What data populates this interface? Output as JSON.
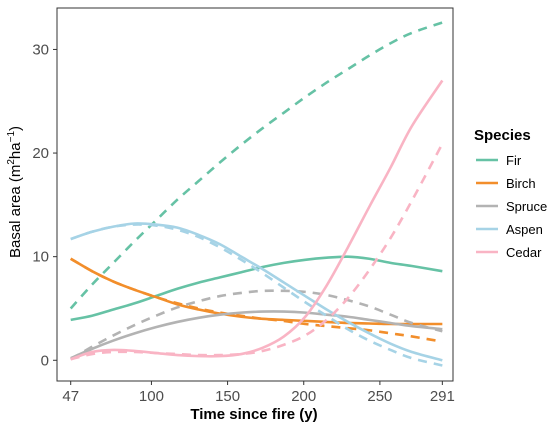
{
  "chart_data": {
    "type": "line",
    "xlabel": "Time since fire (y)",
    "ylabel": "Basal area (m²ha⁻¹)",
    "ylabel_main": "Basal area (m",
    "ylabel_sup1": "2",
    "ylabel_mid": "ha",
    "ylabel_sup2": "−1",
    "ylabel_end": ")",
    "xlim": [
      38,
      298
    ],
    "ylim": [
      -2,
      34
    ],
    "x_ticks": [
      47,
      100,
      150,
      200,
      250,
      291
    ],
    "x_tick_labels": [
      "47",
      "100",
      "150",
      "200",
      "250",
      "291"
    ],
    "y_ticks": [
      0,
      10,
      20,
      30
    ],
    "y_tick_labels": [
      "0",
      "10",
      "20",
      "30"
    ],
    "grid": false,
    "legend": {
      "title": "Species",
      "placement": "right"
    },
    "x": [
      47,
      61,
      75,
      89,
      103,
      117,
      131,
      145,
      159,
      173,
      187,
      201,
      215,
      229,
      243,
      257,
      271,
      291
    ],
    "series": [
      {
        "name": "Fir",
        "style": "solid",
        "color": "#66c2a5",
        "values": [
          3.9,
          4.3,
          4.9,
          5.5,
          6.2,
          6.9,
          7.5,
          8.0,
          8.5,
          9.0,
          9.4,
          9.7,
          9.9,
          10.0,
          9.8,
          9.4,
          9.1,
          8.6
        ]
      },
      {
        "name": "Fir",
        "style": "dashed",
        "color": "#66c2a5",
        "values": [
          5.0,
          7.3,
          9.4,
          11.5,
          13.5,
          15.5,
          17.3,
          19.1,
          20.8,
          22.4,
          23.9,
          25.4,
          26.8,
          28.1,
          29.4,
          30.6,
          31.6,
          32.6
        ]
      },
      {
        "name": "Birch",
        "style": "solid",
        "color": "#f28e2b",
        "values": [
          9.8,
          8.6,
          7.6,
          6.8,
          6.1,
          5.4,
          4.9,
          4.5,
          4.2,
          4.0,
          3.9,
          3.8,
          3.7,
          3.6,
          3.55,
          3.5,
          3.5,
          3.5
        ]
      },
      {
        "name": "Birch",
        "style": "dashed",
        "color": "#f28e2b",
        "values": [
          9.8,
          8.6,
          7.6,
          6.8,
          6.1,
          5.5,
          5.0,
          4.6,
          4.3,
          4.0,
          3.8,
          3.5,
          3.3,
          3.1,
          2.9,
          2.6,
          2.3,
          1.8
        ]
      },
      {
        "name": "Spruce",
        "style": "solid",
        "color": "#b3b3b3",
        "values": [
          0.2,
          1.1,
          1.9,
          2.6,
          3.2,
          3.7,
          4.1,
          4.4,
          4.6,
          4.7,
          4.7,
          4.6,
          4.4,
          4.2,
          3.9,
          3.6,
          3.3,
          3.0
        ]
      },
      {
        "name": "Spruce",
        "style": "dashed",
        "color": "#b3b3b3",
        "values": [
          0.1,
          1.3,
          2.4,
          3.4,
          4.3,
          5.1,
          5.7,
          6.2,
          6.5,
          6.7,
          6.7,
          6.6,
          6.3,
          5.8,
          5.2,
          4.4,
          3.6,
          2.8
        ]
      },
      {
        "name": "Aspen",
        "style": "solid",
        "color": "#a6d3e6",
        "values": [
          11.7,
          12.4,
          12.9,
          13.2,
          13.1,
          12.8,
          12.1,
          11.2,
          10.0,
          8.8,
          7.5,
          6.2,
          4.9,
          3.7,
          2.6,
          1.6,
          0.8,
          0.0
        ]
      },
      {
        "name": "Aspen",
        "style": "dashed",
        "color": "#a6d3e6",
        "values": [
          11.7,
          12.4,
          12.9,
          13.1,
          13.0,
          12.6,
          11.9,
          10.9,
          9.7,
          8.4,
          7.0,
          5.6,
          4.3,
          3.0,
          1.9,
          1.0,
          0.2,
          -0.5
        ]
      },
      {
        "name": "Cedar",
        "style": "solid",
        "color": "#f9b4c4",
        "values": [
          0.1,
          0.8,
          1.0,
          0.9,
          0.7,
          0.5,
          0.4,
          0.4,
          0.6,
          1.2,
          2.3,
          4.2,
          7.2,
          10.9,
          14.8,
          18.6,
          22.6,
          27.0
        ]
      },
      {
        "name": "Cedar",
        "style": "dashed",
        "color": "#f9b4c4",
        "values": [
          0.1,
          0.6,
          0.8,
          0.8,
          0.7,
          0.6,
          0.5,
          0.5,
          0.6,
          0.9,
          1.5,
          2.4,
          3.9,
          6.0,
          8.7,
          11.8,
          15.4,
          20.9
        ]
      }
    ]
  },
  "legend_items": [
    {
      "label": "Fir",
      "color": "#66c2a5"
    },
    {
      "label": "Birch",
      "color": "#f28e2b"
    },
    {
      "label": "Spruce",
      "color": "#b3b3b3"
    },
    {
      "label": "Aspen",
      "color": "#a6d3e6"
    },
    {
      "label": "Cedar",
      "color": "#f9b4c4"
    }
  ]
}
